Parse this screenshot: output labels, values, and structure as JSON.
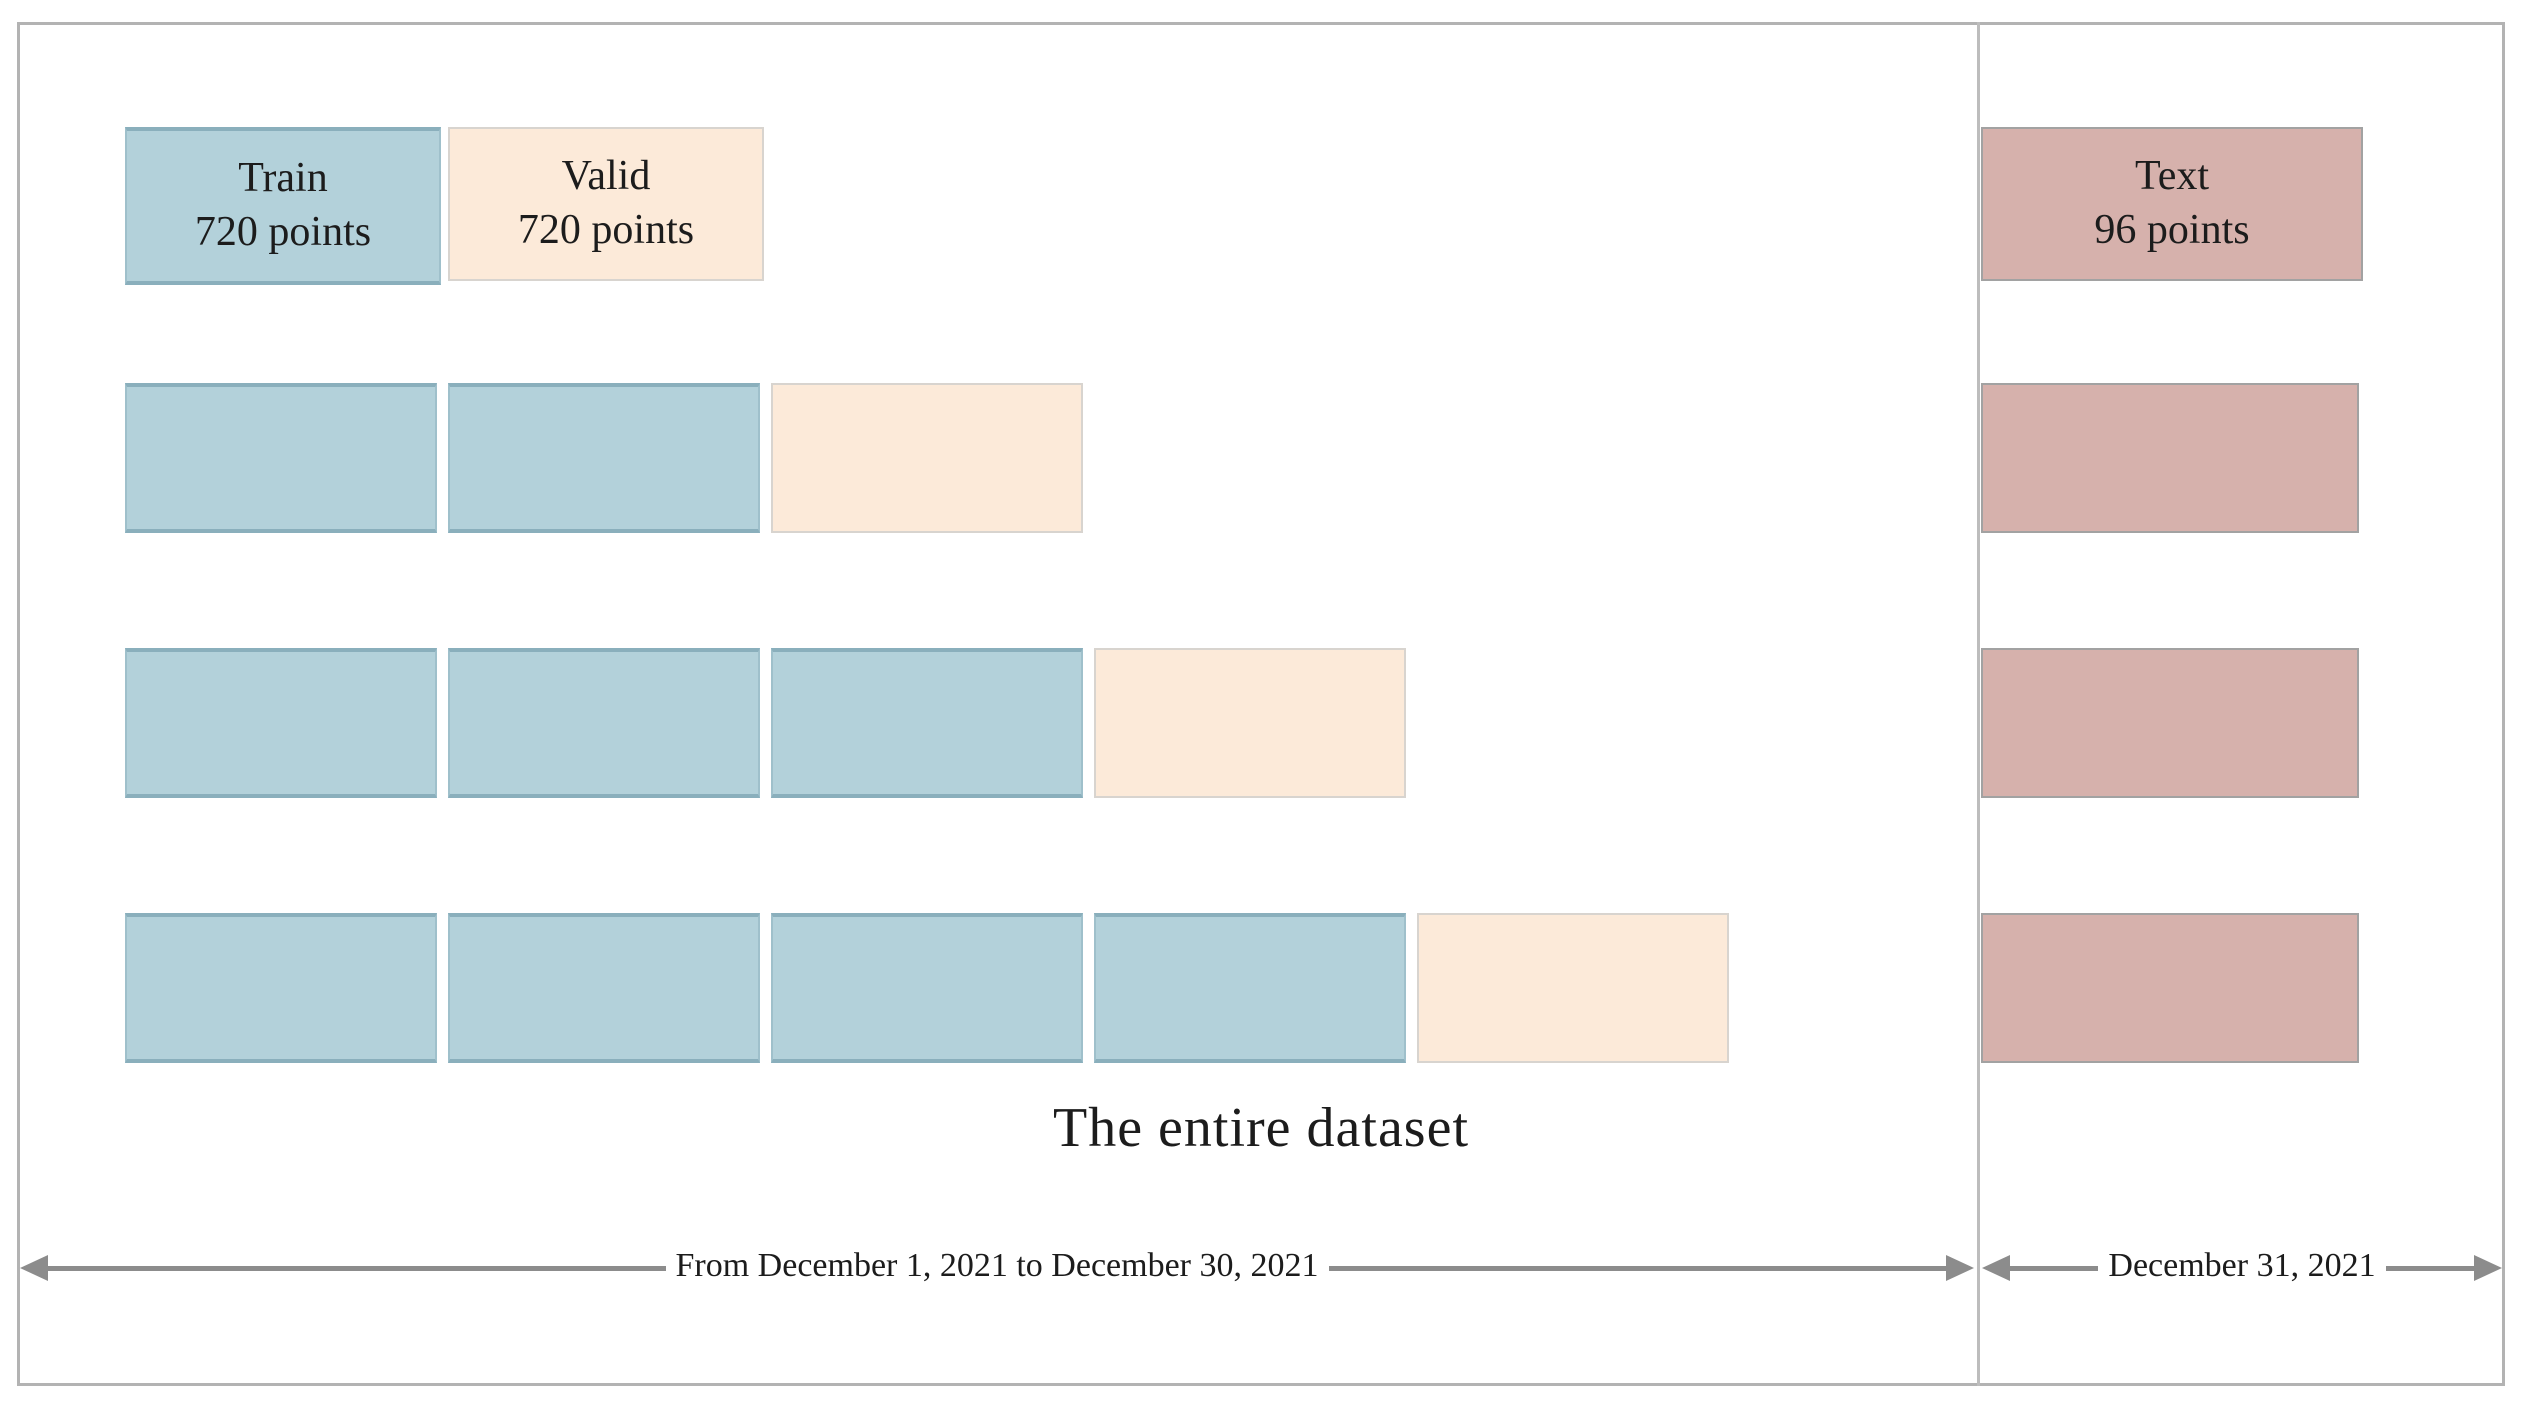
{
  "figure": {
    "title": "The entire dataset",
    "legend": {
      "train": {
        "line1": "Train",
        "line2": "720 points"
      },
      "valid": {
        "line1": "Valid",
        "line2": "720 points"
      },
      "test": {
        "line1": "Text",
        "line2": "96 points"
      }
    },
    "splits": [
      {
        "train_blocks": 2,
        "valid_blocks": 1,
        "test_blocks": 1
      },
      {
        "train_blocks": 3,
        "valid_blocks": 1,
        "test_blocks": 1
      },
      {
        "train_blocks": 4,
        "valid_blocks": 1,
        "test_blocks": 1
      }
    ],
    "timeline": {
      "main_label": "From December 1, 2021 to December 30, 2021",
      "test_label": "December 31, 2021"
    },
    "colors": {
      "train_fill": "#b3d1da",
      "train_border": "#8aafbc",
      "train_border_side": "#9fc0cb",
      "valid_fill": "#fcead9",
      "valid_border": "#d8d4cf",
      "test_fill": "#d6b1ac",
      "test_border": "#a2a2a2",
      "arrow": "#8c8c8c",
      "frame_border": "#b3b3b3",
      "divider": "#bdbdbd",
      "text": "#1c1c1c"
    }
  }
}
